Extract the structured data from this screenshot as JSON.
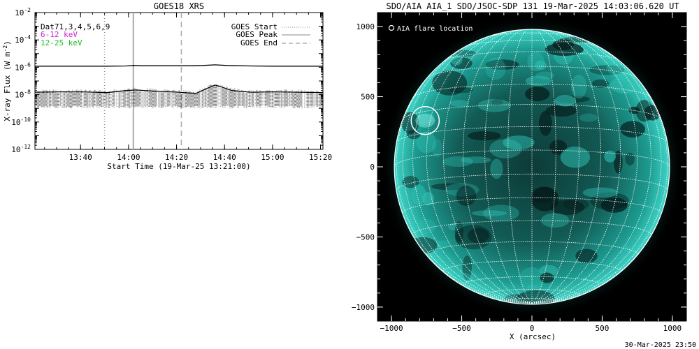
{
  "left_panel": {
    "title": "GOES18 XRS",
    "legend_text": {
      "dat": "Dat71,3,4,5,6,9",
      "band1": "6-12 keV",
      "band2": "12-25 keV"
    },
    "legend_lines": {
      "start": "GOES Start",
      "peak": "GOES Peak",
      "end": "GOES End"
    },
    "xlabel": "Start Time (19-Mar-25 13:21:00)",
    "ylabel_main": "X-ray Flux (W m",
    "ylabel_exp": "-2",
    "ylabel_close": ")",
    "colors": {
      "band1": "#d020d0",
      "band2": "#20d020",
      "line": "#000000"
    }
  },
  "right_panel": {
    "title": "SDO/AIA AIA_1 SDO/JSOC-SDP 131 19-Mar-2025 14:03:06.620 UT",
    "marker_label": "AIA flare location",
    "xlabel": "X (arcsec)",
    "footer": "30-Mar-2025 23:50",
    "colors": {
      "disk": "#1fb3a6",
      "background": "#000000",
      "grid": "#ffffff"
    }
  },
  "chart_data": [
    {
      "type": "line",
      "title": "GOES18 XRS",
      "xlabel": "Start Time (19-Mar-25 13:21:00)",
      "ylabel": "X-ray Flux (W m-2)",
      "x_unit": "minutes since 13:21:00",
      "xlim": [
        0,
        120
      ],
      "x_ticks": [
        {
          "value": 19,
          "label": "13:40"
        },
        {
          "value": 39,
          "label": "14:00"
        },
        {
          "value": 59,
          "label": "14:20"
        },
        {
          "value": 79,
          "label": "14:40"
        },
        {
          "value": 99,
          "label": "15:00"
        },
        {
          "value": 119,
          "label": "15:20"
        }
      ],
      "y_scale": "log",
      "ylim": [
        1e-12,
        0.01
      ],
      "y_ticks": [
        {
          "exp": -12,
          "label_base": "10",
          "label_exp": "-12"
        },
        {
          "exp": -10,
          "label_base": "10",
          "label_exp": "-10"
        },
        {
          "exp": -8,
          "label_base": "10",
          "label_exp": "-8"
        },
        {
          "exp": -6,
          "label_base": "10",
          "label_exp": "-6"
        },
        {
          "exp": -4,
          "label_base": "10",
          "label_exp": "-4"
        },
        {
          "exp": -2,
          "label_base": "10",
          "label_exp": "-2"
        }
      ],
      "markers": [
        {
          "name": "GOES Start",
          "x": 29,
          "style": "dotted",
          "color": "#888888"
        },
        {
          "name": "GOES Peak",
          "x": 41,
          "style": "solid",
          "color": "#aaaaaa"
        },
        {
          "name": "GOES End",
          "x": 61,
          "style": "dashed",
          "color": "#aaaaaa"
        }
      ],
      "series": [
        {
          "name": "6-12 keV",
          "color": "#000000",
          "x": [
            0,
            10,
            20,
            30,
            38,
            41,
            45,
            55,
            65,
            70,
            75,
            80,
            90,
            100,
            110,
            120
          ],
          "y": [
            1.2e-06,
            1.2e-06,
            1.2e-06,
            1.2e-06,
            1.25e-06,
            1.35e-06,
            1.3e-06,
            1.3e-06,
            1.3e-06,
            1.35e-06,
            1.5e-06,
            1.35e-06,
            1.25e-06,
            1.2e-06,
            1.2e-06,
            1.2e-06
          ]
        },
        {
          "name": "12-25 keV",
          "color": "#000000",
          "x": [
            0,
            10,
            20,
            30,
            38,
            42,
            50,
            60,
            67,
            72,
            75,
            78,
            82,
            90,
            100,
            110,
            120
          ],
          "y": [
            1.5e-08,
            1.6e-08,
            1.6e-08,
            1.4e-08,
            2e-08,
            2.2e-08,
            1.8e-08,
            1.5e-08,
            1.2e-08,
            3e-08,
            5e-08,
            3.5e-08,
            2e-08,
            1.5e-08,
            1.6e-08,
            1.5e-08,
            1.4e-08
          ]
        }
      ]
    },
    {
      "type": "heatmap",
      "title": "SDO/AIA AIA_1 SDO/JSOC-SDP 131 19-Mar-2025 14:03:06.620 UT",
      "xlabel": "X (arcsec)",
      "ylabel": "",
      "xlim": [
        -1100,
        1100
      ],
      "ylim": [
        -1100,
        1100
      ],
      "x_ticks": [
        -1000,
        -500,
        0,
        500,
        1000
      ],
      "y_ticks": [
        -1000,
        -500,
        0,
        500,
        1000
      ],
      "tick_labels_x": [
        "−1000",
        "−500",
        "0",
        "500",
        "1000"
      ],
      "tick_labels_y": [
        "−1000",
        "−500",
        "0",
        "500",
        "1000"
      ],
      "solar_radius_arcsec": 980,
      "grid": true,
      "flare_location": {
        "x": -760,
        "y": 330,
        "radius": 100
      }
    }
  ]
}
